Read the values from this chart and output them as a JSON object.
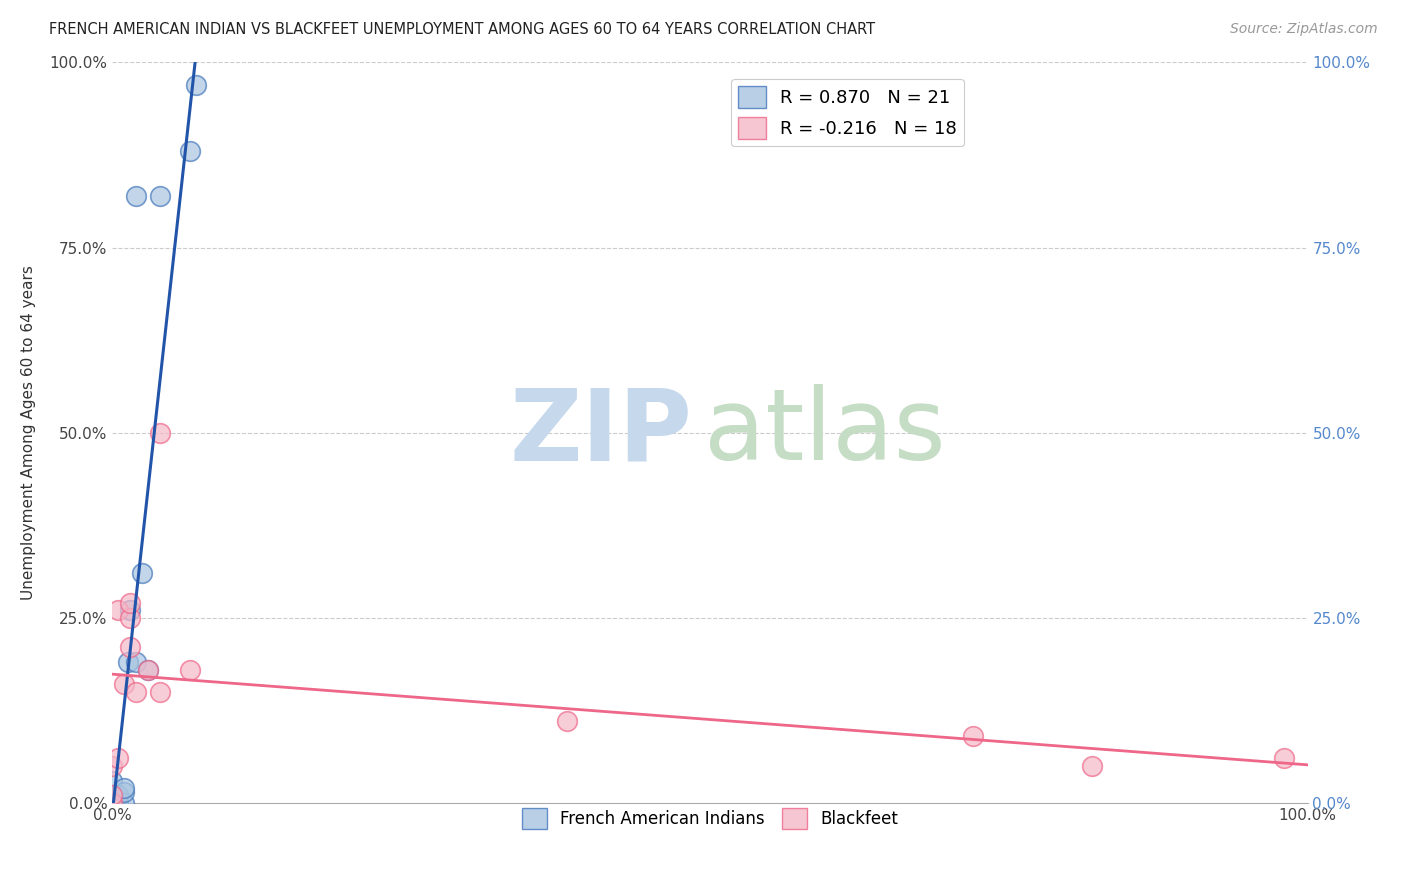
{
  "title": "FRENCH AMERICAN INDIAN VS BLACKFEET UNEMPLOYMENT AMONG AGES 60 TO 64 YEARS CORRELATION CHART",
  "source": "Source: ZipAtlas.com",
  "ylabel": "Unemployment Among Ages 60 to 64 years",
  "xlim": [
    0,
    1.0
  ],
  "ylim": [
    0,
    1.0
  ],
  "xticks": [
    0.0,
    0.125,
    0.25,
    0.375,
    0.5,
    0.625,
    0.75,
    0.875,
    1.0
  ],
  "xticklabels_show": [
    "0.0%",
    "",
    "",
    "",
    "",
    "",
    "",
    "",
    "100.0%"
  ],
  "yticks": [
    0.0,
    0.25,
    0.5,
    0.75,
    1.0
  ],
  "yticklabels_left": [
    "0.0%",
    "25.0%",
    "50.0%",
    "75.0%",
    "100.0%"
  ],
  "yticklabels_right": [
    "0.0%",
    "25.0%",
    "50.0%",
    "75.0%",
    "100.0%"
  ],
  "blue_R": 0.87,
  "blue_N": 21,
  "pink_R": -0.216,
  "pink_N": 18,
  "blue_color": "#a8c4e0",
  "pink_color": "#f4b8c8",
  "blue_edge_color": "#4477bb",
  "pink_edge_color": "#ee6688",
  "blue_line_color": "#2255aa",
  "pink_line_color": "#ee6688",
  "right_tick_color": "#5588cc",
  "watermark_zip_color": "#c5d8ec",
  "watermark_atlas_color": "#c5dcc5",
  "blue_points_x": [
    0.0,
    0.0,
    0.0,
    0.0,
    0.0,
    0.0,
    0.0,
    0.005,
    0.005,
    0.01,
    0.01,
    0.01,
    0.013,
    0.015,
    0.02,
    0.02,
    0.025,
    0.03,
    0.04,
    0.065,
    0.07
  ],
  "blue_points_y": [
    0.0,
    0.0,
    0.0,
    0.0,
    0.005,
    0.01,
    0.03,
    0.0,
    0.01,
    0.0,
    0.015,
    0.02,
    0.19,
    0.26,
    0.19,
    0.82,
    0.31,
    0.18,
    0.82,
    0.88,
    0.97
  ],
  "pink_points_x": [
    0.0,
    0.0,
    0.0,
    0.005,
    0.005,
    0.01,
    0.015,
    0.015,
    0.015,
    0.02,
    0.03,
    0.04,
    0.04,
    0.065,
    0.38,
    0.72,
    0.82,
    0.98
  ],
  "pink_points_y": [
    0.0,
    0.01,
    0.05,
    0.06,
    0.26,
    0.16,
    0.21,
    0.25,
    0.27,
    0.15,
    0.18,
    0.15,
    0.5,
    0.18,
    0.11,
    0.09,
    0.05,
    0.06
  ],
  "background_color": "#ffffff",
  "grid_color": "#cccccc"
}
